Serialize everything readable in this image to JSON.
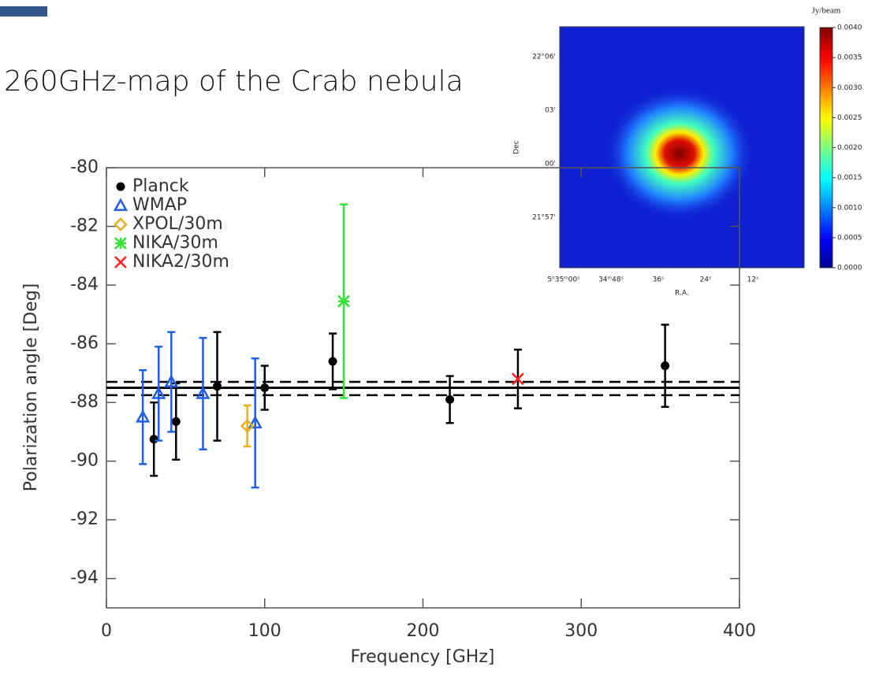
{
  "title": "260GHz-map of the Crab nebula",
  "chart_data": {
    "type": "errorbar",
    "xlabel": "Frequency [GHz]",
    "ylabel": "Polarization angle [Deg]",
    "xlim": [
      0,
      400
    ],
    "ylim": [
      -95,
      -80
    ],
    "xticks": [
      0,
      100,
      200,
      300,
      400
    ],
    "yticks": [
      -80,
      -82,
      -84,
      -86,
      -88,
      -90,
      -92,
      -94
    ],
    "series": [
      {
        "name": "Planck",
        "color": "#000000",
        "marker": "circle",
        "x": [
          30,
          44,
          70,
          100,
          143,
          217,
          353
        ],
        "values": [
          -89.25,
          -88.65,
          -87.45,
          -87.5,
          -86.6,
          -87.9,
          -86.75
        ],
        "errors": [
          1.25,
          1.3,
          1.85,
          0.75,
          0.95,
          0.8,
          1.4
        ]
      },
      {
        "name": "WMAP",
        "color": "#1f5fe0",
        "marker": "triangle",
        "x": [
          23,
          33,
          41,
          61,
          94
        ],
        "values": [
          -88.5,
          -87.7,
          -87.3,
          -87.7,
          -88.7
        ],
        "errors": [
          1.6,
          1.6,
          1.7,
          1.9,
          2.2
        ]
      },
      {
        "name": "XPOL/30m",
        "color": "#e8b020",
        "marker": "diamond",
        "x": [
          89
        ],
        "values": [
          -88.8
        ],
        "errors": [
          0.7
        ]
      },
      {
        "name": "NIKA/30m",
        "color": "#33e033",
        "marker": "asterisk",
        "x": [
          150
        ],
        "values": [
          -84.55
        ],
        "errors": [
          3.3
        ]
      },
      {
        "name": "NIKA2/30m",
        "color": "#ff2020",
        "error_color": "#000000",
        "marker": "cross",
        "x": [
          260
        ],
        "values": [
          -87.2
        ],
        "errors": [
          1.0
        ]
      }
    ],
    "reference_lines": [
      {
        "value": -87.5,
        "style": "solid"
      },
      {
        "value": -87.3,
        "style": "dashed"
      },
      {
        "value": -87.75,
        "style": "dashed"
      }
    ]
  },
  "inset": {
    "colorbar_label": "Jy/beam",
    "colorbar_lim": [
      0,
      0.004
    ],
    "colorbar_ticks": [
      {
        "value": 0,
        "label": "0.0000"
      },
      {
        "value": 0.0005,
        "label": "0.0005"
      },
      {
        "value": 0.001,
        "label": "0.0010"
      },
      {
        "value": 0.0015,
        "label": "0.0015"
      },
      {
        "value": 0.002,
        "label": "0.0020"
      },
      {
        "value": 0.0025,
        "label": "0.0025"
      },
      {
        "value": 0.003,
        "label": "0.0030"
      },
      {
        "value": 0.0035,
        "label": "0.0035"
      },
      {
        "value": 0.004,
        "label": "0.0040"
      }
    ],
    "ylabel": "Dec",
    "xlabel": "R.A.",
    "yticks": [
      "22°06'",
      "03'",
      "00'",
      "21°57'"
    ],
    "xticks": [
      "5ʰ35ᵐ00ˢ",
      "34ᵐ48ˢ",
      "36ˢ",
      "24ˢ",
      "12ˢ"
    ]
  }
}
